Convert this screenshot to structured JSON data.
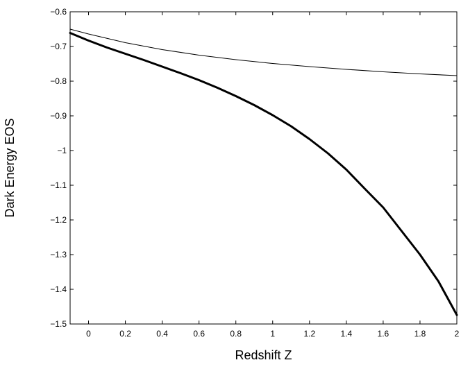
{
  "chart_data": {
    "type": "line",
    "title": "",
    "xlabel": "Redshift Z",
    "ylabel": "Dark Energy EOS",
    "xlim": [
      -0.1,
      2.0
    ],
    "ylim": [
      -1.5,
      -0.6
    ],
    "xticks": [
      0,
      0.2,
      0.4,
      0.6,
      0.8,
      1,
      1.2,
      1.4,
      1.6,
      1.8,
      2
    ],
    "xtick_labels": [
      "0",
      "0.2",
      "0.4",
      "0.6",
      "0.8",
      "1",
      "1.2",
      "1.4",
      "1.6",
      "1.8",
      "2"
    ],
    "yticks": [
      -0.6,
      -0.7,
      -0.8,
      -0.9,
      -1,
      -1.1,
      -1.2,
      -1.3,
      -1.4,
      -1.5
    ],
    "ytick_labels": [
      "−0.6",
      "−0.7",
      "−0.8",
      "−0.9",
      "−1",
      "−1.1",
      "−1.2",
      "−1.3",
      "−1.4",
      "−1.5"
    ],
    "grid": false,
    "legend": null,
    "series": [
      {
        "style": "thin",
        "color": "#000000",
        "x": [
          -0.1,
          0,
          0.2,
          0.4,
          0.6,
          0.8,
          1.0,
          1.2,
          1.4,
          1.6,
          1.8,
          2.0
        ],
        "y": [
          -0.65,
          -0.664,
          -0.689,
          -0.709,
          -0.725,
          -0.738,
          -0.749,
          -0.758,
          -0.766,
          -0.773,
          -0.779,
          -0.784
        ]
      },
      {
        "style": "thick",
        "color": "#000000",
        "x": [
          -0.1,
          0,
          0.1,
          0.2,
          0.3,
          0.4,
          0.5,
          0.6,
          0.7,
          0.8,
          0.9,
          1.0,
          1.1,
          1.2,
          1.3,
          1.4,
          1.5,
          1.6,
          1.7,
          1.8,
          1.9,
          2.0
        ],
        "y": [
          -0.661,
          -0.683,
          -0.703,
          -0.721,
          -0.739,
          -0.758,
          -0.777,
          -0.797,
          -0.819,
          -0.843,
          -0.869,
          -0.898,
          -0.93,
          -0.967,
          -1.008,
          -1.055,
          -1.11,
          -1.164,
          -1.232,
          -1.3,
          -1.377,
          -1.474
        ]
      }
    ]
  }
}
